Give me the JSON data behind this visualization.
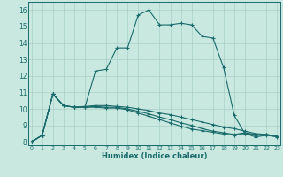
{
  "xlabel": "Humidex (Indice chaleur)",
  "background_color": "#c8e8e0",
  "grid_color": "#a8d0c8",
  "line_color": "#1a6b6b",
  "xlim": [
    -0.3,
    23.3
  ],
  "ylim": [
    7.8,
    16.5
  ],
  "yticks": [
    8,
    9,
    10,
    11,
    12,
    13,
    14,
    15,
    16
  ],
  "xticks": [
    0,
    1,
    2,
    3,
    4,
    5,
    6,
    7,
    8,
    9,
    10,
    11,
    12,
    13,
    14,
    15,
    16,
    17,
    18,
    19,
    20,
    21,
    22,
    23
  ],
  "series_x": [
    [
      0,
      1,
      2,
      3,
      4,
      5,
      6,
      7,
      8,
      9,
      10,
      11,
      12,
      13,
      14,
      15,
      16,
      17,
      18,
      19,
      20,
      21,
      22,
      23
    ],
    [
      0,
      1,
      2,
      3,
      4,
      5,
      6,
      7,
      8,
      9,
      10,
      11,
      12,
      13,
      14,
      15,
      16,
      17,
      18,
      19,
      20,
      21,
      22,
      23
    ],
    [
      0,
      1,
      2,
      3,
      4,
      5,
      6,
      7,
      8,
      9,
      10,
      11,
      12,
      13,
      14,
      15,
      16,
      17,
      18,
      19,
      20,
      21,
      22,
      23
    ],
    [
      0,
      1,
      2,
      3,
      4,
      5,
      6,
      7,
      8,
      9,
      10,
      11,
      12,
      13,
      14,
      15,
      16,
      17,
      18,
      19,
      20,
      21,
      22,
      23
    ]
  ],
  "series_y": [
    [
      8.0,
      8.4,
      10.9,
      10.2,
      10.1,
      10.1,
      12.3,
      12.4,
      13.7,
      13.7,
      15.7,
      16.0,
      15.1,
      15.1,
      15.2,
      15.1,
      14.4,
      14.3,
      12.5,
      9.6,
      8.5,
      8.3,
      8.4,
      8.3
    ],
    [
      8.0,
      8.4,
      10.9,
      10.2,
      10.1,
      10.15,
      10.2,
      10.2,
      10.15,
      10.1,
      10.0,
      9.9,
      9.75,
      9.65,
      9.5,
      9.35,
      9.2,
      9.05,
      8.9,
      8.8,
      8.65,
      8.5,
      8.45,
      8.35
    ],
    [
      8.0,
      8.4,
      10.9,
      10.2,
      10.1,
      10.1,
      10.15,
      10.1,
      10.1,
      10.0,
      9.85,
      9.7,
      9.5,
      9.35,
      9.15,
      9.0,
      8.8,
      8.65,
      8.55,
      8.45,
      8.55,
      8.45,
      8.45,
      8.35
    ],
    [
      8.0,
      8.4,
      10.9,
      10.2,
      10.1,
      10.1,
      10.1,
      10.05,
      10.05,
      9.95,
      9.75,
      9.55,
      9.35,
      9.15,
      8.95,
      8.78,
      8.68,
      8.58,
      8.48,
      8.4,
      8.52,
      8.4,
      8.42,
      8.32
    ]
  ]
}
